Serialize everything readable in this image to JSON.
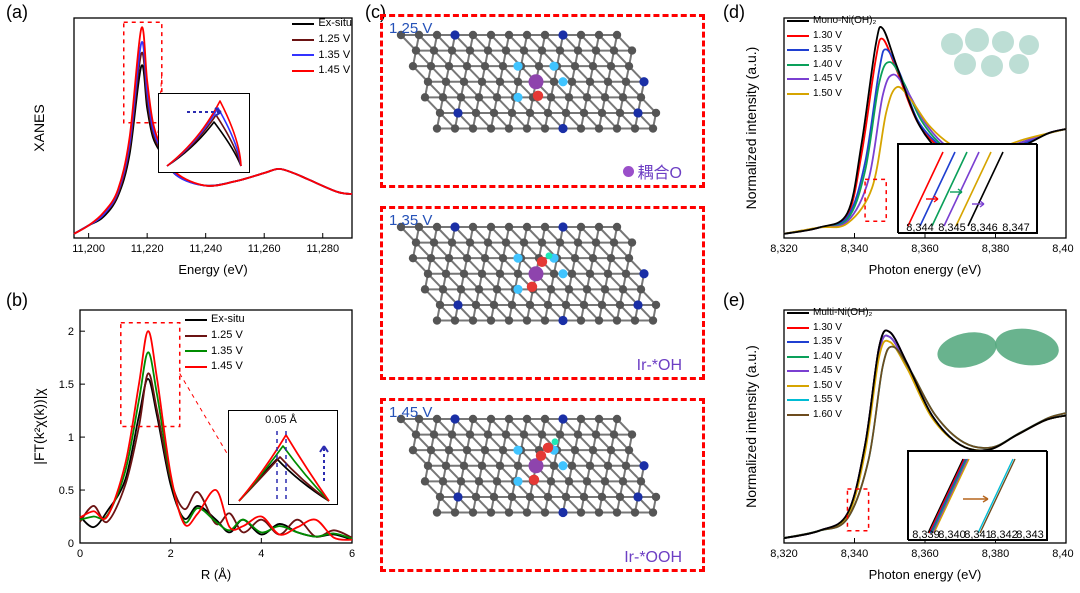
{
  "labels": {
    "a": "(a)",
    "b": "(b)",
    "c": "(c)",
    "d": "(d)",
    "e": "(e)"
  },
  "panel_a": {
    "xlabel": "Energy (eV)",
    "ylabel": "XANES",
    "xlim": [
      11195,
      11290
    ],
    "xticks": [
      11200,
      11220,
      11240,
      11260,
      11280
    ],
    "legend": [
      {
        "label": "Ex-situ",
        "color": "#000000"
      },
      {
        "label": "1.25 V",
        "color": "#6b1313"
      },
      {
        "label": "1.35 V",
        "color": "#3333ff"
      },
      {
        "label": "1.45 V",
        "color": "#ff0000"
      }
    ],
    "series": {
      "exsitu": {
        "color": "#000000",
        "x": [
          11195,
          11200,
          11205,
          11210,
          11214,
          11218,
          11220,
          11222,
          11225,
          11230,
          11240,
          11250,
          11260,
          11265,
          11270,
          11275,
          11285,
          11290
        ],
        "y": [
          0.02,
          0.06,
          0.1,
          0.2,
          0.4,
          0.82,
          0.62,
          0.48,
          0.4,
          0.3,
          0.25,
          0.27,
          0.31,
          0.33,
          0.31,
          0.28,
          0.22,
          0.21
        ]
      },
      "v125": {
        "color": "#6b1313",
        "x": [
          11195,
          11200,
          11205,
          11210,
          11214,
          11218,
          11220,
          11222,
          11225,
          11230,
          11240,
          11250,
          11260,
          11265,
          11270,
          11275,
          11285,
          11290
        ],
        "y": [
          0.02,
          0.06,
          0.11,
          0.21,
          0.43,
          0.88,
          0.66,
          0.5,
          0.41,
          0.3,
          0.25,
          0.27,
          0.31,
          0.33,
          0.31,
          0.28,
          0.22,
          0.21
        ]
      },
      "v135": {
        "color": "#3333ff",
        "x": [
          11195,
          11200,
          11205,
          11210,
          11214,
          11218,
          11220,
          11222,
          11225,
          11230,
          11240,
          11250,
          11260,
          11265,
          11270,
          11275,
          11285,
          11290
        ],
        "y": [
          0.02,
          0.06,
          0.11,
          0.22,
          0.45,
          0.93,
          0.7,
          0.52,
          0.42,
          0.3,
          0.25,
          0.27,
          0.31,
          0.33,
          0.31,
          0.28,
          0.22,
          0.21
        ]
      },
      "v145": {
        "color": "#ff0000",
        "x": [
          11195,
          11200,
          11205,
          11210,
          11214,
          11218,
          11220,
          11222,
          11225,
          11230,
          11240,
          11250,
          11260,
          11265,
          11270,
          11275,
          11285,
          11290
        ],
        "y": [
          0.02,
          0.06,
          0.12,
          0.23,
          0.48,
          1.0,
          0.75,
          0.55,
          0.43,
          0.31,
          0.25,
          0.27,
          0.31,
          0.33,
          0.31,
          0.28,
          0.22,
          0.21
        ]
      }
    },
    "inset_note_arrow_color": "#2b2bb0"
  },
  "panel_b": {
    "xlabel": "R (Å)",
    "ylabel": "|FT(k²χ(k))|χ",
    "xlim": [
      0,
      6
    ],
    "ylim": [
      0,
      2.2
    ],
    "xticks": [
      0,
      2,
      4,
      6
    ],
    "yticks": [
      0,
      0.5,
      1.0,
      1.5,
      2.0
    ],
    "legend": [
      {
        "label": "Ex-situ",
        "color": "#000000"
      },
      {
        "label": "1.25 V",
        "color": "#6b1313"
      },
      {
        "label": "1.35 V",
        "color": "#008c00"
      },
      {
        "label": "1.45 V",
        "color": "#ff0000"
      }
    ],
    "inset_label": "0.05 Å",
    "series": {
      "exsitu": {
        "color": "#000000",
        "x": [
          0,
          0.3,
          0.6,
          1.0,
          1.3,
          1.5,
          1.7,
          2.0,
          2.3,
          2.6,
          3.0,
          3.3,
          3.6,
          4.0,
          4.4,
          4.8,
          5.2,
          5.6,
          6.0
        ],
        "y": [
          0.25,
          0.15,
          0.3,
          0.6,
          1.2,
          1.55,
          1.2,
          0.55,
          0.23,
          0.35,
          0.22,
          0.1,
          0.22,
          0.08,
          0.18,
          0.1,
          0.06,
          0.08,
          0.03
        ]
      },
      "v125": {
        "color": "#6b1313",
        "x": [
          0,
          0.3,
          0.6,
          1.0,
          1.3,
          1.5,
          1.7,
          2.0,
          2.3,
          2.6,
          3.0,
          3.3,
          3.6,
          4.0,
          4.4,
          4.8,
          5.2,
          5.6,
          6.0
        ],
        "y": [
          0.2,
          0.35,
          0.2,
          0.55,
          1.1,
          1.6,
          1.25,
          0.6,
          0.32,
          0.48,
          0.18,
          0.28,
          0.1,
          0.22,
          0.08,
          0.22,
          0.06,
          0.12,
          0.05
        ]
      },
      "v135": {
        "color": "#008c00",
        "x": [
          0,
          0.3,
          0.6,
          1.0,
          1.3,
          1.5,
          1.7,
          2.0,
          2.3,
          2.6,
          3.0,
          3.3,
          3.6,
          4.0,
          4.4,
          4.8,
          5.2,
          5.6,
          6.0
        ],
        "y": [
          0.22,
          0.25,
          0.26,
          0.68,
          1.35,
          1.8,
          1.4,
          0.62,
          0.2,
          0.33,
          0.2,
          0.12,
          0.22,
          0.1,
          0.16,
          0.1,
          0.06,
          0.09,
          0.04
        ]
      },
      "v145": {
        "color": "#ff0000",
        "x": [
          0,
          0.3,
          0.6,
          1.0,
          1.3,
          1.5,
          1.7,
          2.0,
          2.3,
          2.6,
          3.0,
          3.3,
          3.6,
          4.0,
          4.4,
          4.8,
          5.2,
          5.6,
          6.0
        ],
        "y": [
          0.24,
          0.3,
          0.25,
          0.75,
          1.5,
          2.0,
          1.55,
          0.65,
          0.18,
          0.28,
          0.5,
          0.15,
          0.16,
          0.25,
          0.08,
          0.15,
          0.22,
          0.05,
          0.03
        ]
      }
    }
  },
  "panel_c": {
    "frames": [
      {
        "voltage": "1.25 V",
        "label": "耦合O",
        "dot_color": "#9a4fc9"
      },
      {
        "voltage": "1.35 V",
        "label": "Ir-*OH",
        "dot_color": null
      },
      {
        "voltage": "1.45 V",
        "label": "Ir-*OOH",
        "dot_color": null
      }
    ],
    "atom_colors": {
      "C": "#555555",
      "N_dopant": "#1a2fa6",
      "N_near": "#40c4ff",
      "Ir": "#8e44ad",
      "O": "#e53935",
      "H": "#1de9b6"
    }
  },
  "panel_d": {
    "title": "Mono-Ni(OH)₂",
    "xlabel": "Photon energy (eV)",
    "ylabel": "Normalized intensity (a.u.)",
    "xlim": [
      8320,
      8400
    ],
    "xticks": [
      8320,
      8340,
      8360,
      8380,
      8400
    ],
    "legend": [
      {
        "label": "Mono-Ni(OH)₂",
        "color": "#000000"
      },
      {
        "label": "1.30 V",
        "color": "#ff0000"
      },
      {
        "label": "1.35 V",
        "color": "#1f3fd1"
      },
      {
        "label": "1.40 V",
        "color": "#0aa05a"
      },
      {
        "label": "1.45 V",
        "color": "#7a3fd1"
      },
      {
        "label": "1.50 V",
        "color": "#d6a400"
      }
    ],
    "inset_ticks": [
      "8,344",
      "8,345",
      "8,346",
      "8,347"
    ],
    "series": {
      "mono": {
        "color": "#000000",
        "x": [
          8320,
          8330,
          8338,
          8342,
          8346,
          8348,
          8352,
          8358,
          8365,
          8372,
          8380,
          8388,
          8395,
          8400
        ],
        "y": [
          0.02,
          0.05,
          0.12,
          0.45,
          0.92,
          1.0,
          0.82,
          0.55,
          0.4,
          0.35,
          0.38,
          0.44,
          0.5,
          0.52
        ]
      },
      "130": {
        "color": "#ff0000",
        "x": [
          8320,
          8330,
          8338,
          8342,
          8346,
          8348,
          8352,
          8358,
          8365,
          8372,
          8380,
          8388,
          8395,
          8400
        ],
        "y": [
          0.02,
          0.05,
          0.11,
          0.4,
          0.85,
          0.95,
          0.8,
          0.55,
          0.42,
          0.36,
          0.39,
          0.45,
          0.5,
          0.52
        ]
      },
      "135": {
        "color": "#1f3fd1",
        "x": [
          8320,
          8330,
          8338,
          8343,
          8347,
          8349,
          8353,
          8358,
          8365,
          8372,
          8380,
          8388,
          8395,
          8400
        ],
        "y": [
          0.02,
          0.05,
          0.1,
          0.36,
          0.8,
          0.9,
          0.78,
          0.56,
          0.43,
          0.37,
          0.4,
          0.45,
          0.5,
          0.52
        ]
      },
      "140": {
        "color": "#0aa05a",
        "x": [
          8320,
          8330,
          8338,
          8343,
          8347,
          8350,
          8354,
          8359,
          8365,
          8372,
          8380,
          8388,
          8395,
          8400
        ],
        "y": [
          0.02,
          0.05,
          0.09,
          0.32,
          0.74,
          0.84,
          0.74,
          0.56,
          0.44,
          0.38,
          0.41,
          0.46,
          0.5,
          0.52
        ]
      },
      "145": {
        "color": "#7a3fd1",
        "x": [
          8320,
          8330,
          8338,
          8344,
          8348,
          8351,
          8355,
          8360,
          8366,
          8373,
          8380,
          8388,
          8395,
          8400
        ],
        "y": [
          0.02,
          0.05,
          0.08,
          0.28,
          0.68,
          0.78,
          0.7,
          0.55,
          0.44,
          0.39,
          0.42,
          0.46,
          0.5,
          0.52
        ]
      },
      "150": {
        "color": "#d6a400",
        "x": [
          8320,
          8330,
          8338,
          8345,
          8349,
          8352,
          8356,
          8361,
          8367,
          8374,
          8381,
          8388,
          8395,
          8400
        ],
        "y": [
          0.02,
          0.05,
          0.07,
          0.24,
          0.6,
          0.72,
          0.66,
          0.54,
          0.45,
          0.4,
          0.43,
          0.47,
          0.5,
          0.52
        ]
      }
    },
    "balls_color": "#a7d3c7"
  },
  "panel_e": {
    "title": "Multi-Ni(OH)₂",
    "xlabel": "Photon energy (eV)",
    "ylabel": "Normalized intensity (a.u.)",
    "xlim": [
      8320,
      8400
    ],
    "xticks": [
      8320,
      8340,
      8360,
      8380,
      8400
    ],
    "legend": [
      {
        "label": "Multi-Ni(OH)₂",
        "color": "#000000"
      },
      {
        "label": "1.30 V",
        "color": "#ff0000"
      },
      {
        "label": "1.35 V",
        "color": "#1f3fd1"
      },
      {
        "label": "1.40 V",
        "color": "#0aa05a"
      },
      {
        "label": "1.45 V",
        "color": "#7a3fd1"
      },
      {
        "label": "1.50 V",
        "color": "#d6a400"
      },
      {
        "label": "1.55 V",
        "color": "#00bcd4"
      },
      {
        "label": "1.60 V",
        "color": "#6d4c1e"
      }
    ],
    "inset_ticks": [
      "8,339",
      "8,340",
      "8,341",
      "8,342",
      "8,343"
    ],
    "series": {
      "multi": {
        "color": "#000000",
        "x": [
          8320,
          8330,
          8338,
          8343,
          8347,
          8350,
          8355,
          8362,
          8370,
          8378,
          8386,
          8394,
          8400
        ],
        "y": [
          0.02,
          0.05,
          0.12,
          0.4,
          0.8,
          0.86,
          0.73,
          0.52,
          0.4,
          0.38,
          0.44,
          0.5,
          0.52
        ]
      },
      "130": {
        "color": "#ff0000",
        "x": [
          8320,
          8330,
          8338,
          8343,
          8347,
          8350,
          8355,
          8362,
          8370,
          8378,
          8386,
          8394,
          8400
        ],
        "y": [
          0.02,
          0.05,
          0.12,
          0.4,
          0.8,
          0.86,
          0.73,
          0.52,
          0.4,
          0.38,
          0.44,
          0.5,
          0.52
        ]
      },
      "135": {
        "color": "#1f3fd1",
        "x": [
          8320,
          8330,
          8338,
          8343,
          8347,
          8350,
          8355,
          8362,
          8370,
          8378,
          8386,
          8394,
          8400
        ],
        "y": [
          0.02,
          0.05,
          0.12,
          0.4,
          0.8,
          0.86,
          0.73,
          0.52,
          0.4,
          0.38,
          0.44,
          0.5,
          0.52
        ]
      },
      "140": {
        "color": "#0aa05a",
        "x": [
          8320,
          8330,
          8338,
          8343,
          8347,
          8350,
          8355,
          8362,
          8370,
          8378,
          8386,
          8394,
          8400
        ],
        "y": [
          0.02,
          0.05,
          0.11,
          0.38,
          0.78,
          0.84,
          0.72,
          0.52,
          0.4,
          0.38,
          0.44,
          0.5,
          0.52
        ]
      },
      "145": {
        "color": "#7a3fd1",
        "x": [
          8320,
          8330,
          8338,
          8343,
          8347,
          8350,
          8355,
          8362,
          8370,
          8378,
          8386,
          8394,
          8400
        ],
        "y": [
          0.02,
          0.05,
          0.11,
          0.38,
          0.78,
          0.84,
          0.72,
          0.52,
          0.4,
          0.38,
          0.44,
          0.5,
          0.52
        ]
      },
      "150": {
        "color": "#d6a400",
        "x": [
          8320,
          8330,
          8338,
          8343,
          8347,
          8350,
          8355,
          8362,
          8370,
          8378,
          8386,
          8394,
          8400
        ],
        "y": [
          0.02,
          0.05,
          0.11,
          0.37,
          0.76,
          0.82,
          0.71,
          0.51,
          0.4,
          0.38,
          0.44,
          0.5,
          0.52
        ]
      },
      "155": {
        "color": "#00bcd4",
        "x": [
          8320,
          8330,
          8338,
          8344,
          8348,
          8351,
          8356,
          8363,
          8371,
          8379,
          8387,
          8395,
          8400
        ],
        "y": [
          0.02,
          0.05,
          0.1,
          0.34,
          0.72,
          0.8,
          0.7,
          0.52,
          0.41,
          0.39,
          0.45,
          0.51,
          0.53
        ]
      },
      "160": {
        "color": "#6d4c1e",
        "x": [
          8320,
          8330,
          8338,
          8344,
          8348,
          8351,
          8356,
          8363,
          8371,
          8379,
          8387,
          8395,
          8400
        ],
        "y": [
          0.02,
          0.05,
          0.1,
          0.34,
          0.72,
          0.8,
          0.7,
          0.52,
          0.41,
          0.39,
          0.45,
          0.51,
          0.53
        ]
      }
    },
    "blobs_color": "#4fa67a"
  }
}
